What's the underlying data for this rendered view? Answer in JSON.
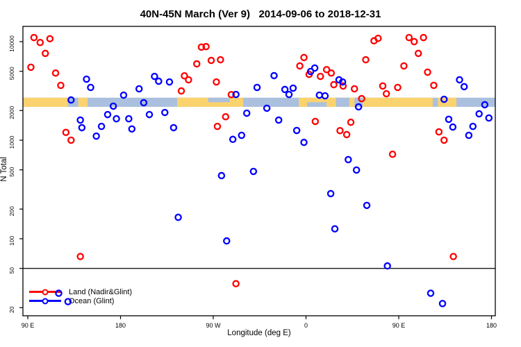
{
  "header": {
    "title": "40N-45N March (Ver 9)   2014-09-06 to 2018-12-31"
  },
  "axes": {
    "x_label": "Longitude (deg E)",
    "y_label": "N Total"
  },
  "legend": {
    "items": [
      {
        "label": "Land (Nadir&Glint)",
        "color": "#FF0000"
      },
      {
        "label": "Ocean (Glint)",
        "color": "#0000FF"
      }
    ]
  },
  "chart_data": {
    "type": "scatter",
    "title": "40N-45N March (Ver 9)   2014-09-06 to 2018-12-31",
    "xlabel": "Longitude (deg E)",
    "ylabel": "N Total",
    "y_scale": "log",
    "y_ticks": [
      20,
      50,
      100,
      200,
      500,
      1000,
      2000,
      5000,
      10000
    ],
    "y_range": [
      15,
      14500
    ],
    "x_axis_note": "axis spans 450 longitude degrees eastward from 90E (90E,180,90W,0,90E,180); axis_deg = degrees east of the 90E left tick",
    "x_ticks": [
      {
        "axis_deg": 0,
        "label": "90 E"
      },
      {
        "axis_deg": 90,
        "label": "180"
      },
      {
        "axis_deg": 180,
        "label": "90 W"
      },
      {
        "axis_deg": 270,
        "label": "0"
      },
      {
        "axis_deg": 360,
        "label": "90 E"
      },
      {
        "axis_deg": 450,
        "label": "180"
      }
    ],
    "x_axis_range_deg": [
      -4.7,
      453.7
    ],
    "threshold_line_y": 50,
    "map_band": {
      "description": "40N-45N latitude land/ocean strip drawn across the plot",
      "n_range": [
        2180,
        2700
      ],
      "ocean_color": "#ABC0DE",
      "land_color": "#FBD36E",
      "land_segments_deg": [
        [
          -4.7,
          39
        ],
        [
          49,
          58
        ],
        [
          145,
          209
        ],
        [
          263,
          360
        ],
        [
          360,
          393
        ],
        [
          398,
          416
        ]
      ],
      "lake_segments_deg": [
        {
          "range": [
            175,
            196
          ],
          "part": "upper"
        },
        {
          "range": [
            271,
            290
          ],
          "part": "lower"
        },
        {
          "range": [
            299,
            312
          ],
          "part": "full"
        },
        {
          "range": [
            317,
            325
          ],
          "part": "full"
        }
      ]
    },
    "series": [
      {
        "name": "Land (Nadir&Glint)",
        "color": "#FF0000",
        "points": [
          [
            6,
            11000
          ],
          [
            12,
            9800
          ],
          [
            21.5,
            10700
          ],
          [
            17,
            7600
          ],
          [
            3,
            5500
          ],
          [
            27,
            4800
          ],
          [
            32,
            3600
          ],
          [
            37,
            1200
          ],
          [
            42,
            1000
          ],
          [
            168.5,
            8800
          ],
          [
            173,
            8900
          ],
          [
            164,
            5950
          ],
          [
            178,
            6450
          ],
          [
            187,
            6550
          ],
          [
            152,
            4500
          ],
          [
            156,
            4100
          ],
          [
            183,
            3900
          ],
          [
            149,
            3160
          ],
          [
            197.5,
            2900
          ],
          [
            192,
            1730
          ],
          [
            184,
            1380
          ],
          [
            336,
            10200
          ],
          [
            340,
            10800
          ],
          [
            370,
            11000
          ],
          [
            375,
            10000
          ],
          [
            384,
            11000
          ],
          [
            268,
            6900
          ],
          [
            264,
            5670
          ],
          [
            328,
            6550
          ],
          [
            379,
            7600
          ],
          [
            273,
            4650
          ],
          [
            284,
            4440
          ],
          [
            290,
            5200
          ],
          [
            294.5,
            4800
          ],
          [
            365,
            5670
          ],
          [
            388,
            4900
          ],
          [
            297,
            3660
          ],
          [
            306,
            3550
          ],
          [
            317,
            3320
          ],
          [
            344.5,
            3550
          ],
          [
            348,
            2960
          ],
          [
            359,
            3430
          ],
          [
            394,
            3600
          ],
          [
            324,
            2640
          ],
          [
            279,
            1550
          ],
          [
            313.5,
            1520
          ],
          [
            303,
            1250
          ],
          [
            309.5,
            1140
          ],
          [
            399,
            1215
          ],
          [
            404,
            1000
          ],
          [
            354,
            720
          ],
          [
            51,
            66
          ],
          [
            202,
            35
          ],
          [
            413,
            66
          ]
        ]
      },
      {
        "name": "Ocean (Glint)",
        "color": "#0000FF",
        "points": [
          [
            57,
            4160
          ],
          [
            61,
            3430
          ],
          [
            42,
            2560
          ],
          [
            123,
            4440
          ],
          [
            127,
            3965
          ],
          [
            137.5,
            3900
          ],
          [
            108,
            3320
          ],
          [
            93,
            2865
          ],
          [
            112.5,
            2400
          ],
          [
            83,
            2215
          ],
          [
            118,
            1820
          ],
          [
            133,
            1910
          ],
          [
            77.5,
            1820
          ],
          [
            86,
            1650
          ],
          [
            98,
            1650
          ],
          [
            71.5,
            1380
          ],
          [
            51,
            1600
          ],
          [
            52.5,
            1340
          ],
          [
            141.5,
            1340
          ],
          [
            101,
            1300
          ],
          [
            66.5,
            1100
          ],
          [
            222.5,
            3430
          ],
          [
            202,
            2910
          ],
          [
            212.5,
            1880
          ],
          [
            199,
            1020
          ],
          [
            207.5,
            1120
          ],
          [
            239,
            4520
          ],
          [
            249.5,
            3270
          ],
          [
            253.5,
            2910
          ],
          [
            257.5,
            3375
          ],
          [
            278.5,
            5400
          ],
          [
            274.5,
            4980
          ],
          [
            302,
            4100
          ],
          [
            305.5,
            3900
          ],
          [
            283,
            2865
          ],
          [
            288.5,
            2820
          ],
          [
            321,
            2180
          ],
          [
            232,
            2110
          ],
          [
            243.5,
            1600
          ],
          [
            261,
            1255
          ],
          [
            268,
            950
          ],
          [
            419,
            4100
          ],
          [
            423.5,
            3490
          ],
          [
            404,
            2600
          ],
          [
            443.5,
            2290
          ],
          [
            438,
            1850
          ],
          [
            447.5,
            1680
          ],
          [
            408.5,
            1630
          ],
          [
            412.5,
            1360
          ],
          [
            428,
            1120
          ],
          [
            432,
            1380
          ],
          [
            188,
            437
          ],
          [
            219,
            482
          ],
          [
            294,
            287
          ],
          [
            311,
            635
          ],
          [
            319,
            498
          ],
          [
            329,
            218
          ],
          [
            146,
            165
          ],
          [
            298,
            126
          ],
          [
            193,
            95
          ],
          [
            349,
            53
          ],
          [
            391,
            28
          ],
          [
            402.5,
            22
          ],
          [
            30,
            28
          ],
          [
            39,
            23
          ]
        ]
      }
    ]
  }
}
